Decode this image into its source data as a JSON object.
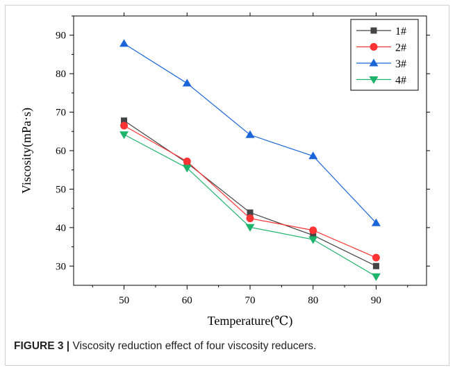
{
  "figure": {
    "label": "FIGURE 3",
    "separator": "|",
    "text": "Viscosity reduction effect of four viscosity reducers."
  },
  "colors": {
    "frame": "#d0d0d0",
    "axis": "#000000"
  },
  "chart_data": {
    "type": "line",
    "title": "",
    "xlabel": "Temperature(℃)",
    "ylabel": "Viscosity(mPa·s)",
    "x": [
      50,
      60,
      70,
      80,
      90
    ],
    "xlim": [
      42,
      98
    ],
    "ylim": [
      25,
      95
    ],
    "xticks": [
      50,
      60,
      70,
      80,
      90
    ],
    "yticks": [
      30,
      40,
      50,
      60,
      70,
      80,
      90
    ],
    "grid": false,
    "legend_position": "top-right",
    "series": [
      {
        "name": "1#",
        "values": [
          67.8,
          56.8,
          43.9,
          38.0,
          30.0
        ],
        "color": "#444444",
        "marker": "square"
      },
      {
        "name": "2#",
        "values": [
          66.5,
          57.2,
          42.4,
          39.3,
          32.2
        ],
        "color": "#ff3333",
        "marker": "circle"
      },
      {
        "name": "3#",
        "values": [
          87.8,
          77.5,
          64.1,
          58.6,
          41.2
        ],
        "color": "#1a66d9",
        "marker": "triangle-up"
      },
      {
        "name": "4#",
        "values": [
          64.2,
          55.5,
          40.1,
          36.9,
          27.3
        ],
        "color": "#1db36b",
        "marker": "triangle-down"
      }
    ]
  }
}
